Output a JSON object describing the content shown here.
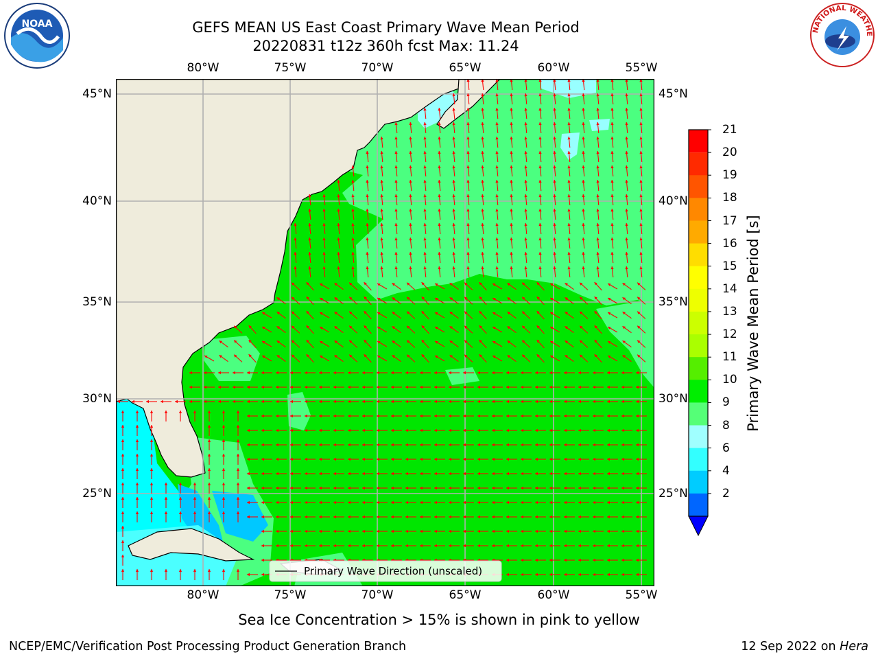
{
  "title": {
    "line1": "GEFS MEAN US East Coast Primary Wave Mean Period",
    "line2": "20220831 t12z 360h fcst   Max: 11.24"
  },
  "map": {
    "lon_labels": [
      "80°W",
      "75°W",
      "70°W",
      "65°W",
      "60°W",
      "55°W"
    ],
    "lat_labels": [
      "45°N",
      "40°N",
      "35°N",
      "30°N",
      "25°N"
    ],
    "legend_label": "Primary Wave Direction (unscaled)",
    "arrow_color": "#ff0000",
    "land_color": "#efecdc",
    "field_colors": {
      "lt9_light": "#98ffff",
      "9_10": "#4bff80",
      "10_11": "#00e600",
      "8_9": "#4bffff",
      "6_8": "#00ffff",
      "4_6": "#00c8ff"
    }
  },
  "colorbar": {
    "title": "Primary Wave Mean Period [s]",
    "levels": [
      "2",
      "4",
      "6",
      "8",
      "9",
      "10",
      "11",
      "12",
      "13",
      "14",
      "15",
      "16",
      "17",
      "18",
      "19",
      "20",
      "21"
    ],
    "colors": [
      "#0066ff",
      "#00ccff",
      "#33ffff",
      "#a0ffff",
      "#55ff77",
      "#00ee00",
      "#55ee00",
      "#aaff00",
      "#ccff00",
      "#eeff00",
      "#ffff00",
      "#ffdd00",
      "#ffaa00",
      "#ff8800",
      "#ff5500",
      "#ff2a00"
    ],
    "under_color": "#0000ff",
    "top_color": "#ff0000"
  },
  "note": "Sea Ice Concentration > 15% is shown in pink to yellow",
  "footer": {
    "left": "NCEP/EMC/Verification Post Processing Product Generation Branch",
    "right_date": "12 Sep 2022 on",
    "right_host": "Hera"
  },
  "logos": {
    "noaa_text": "NOAA",
    "nws_text": "NATIONAL WEATHER SERVICE"
  }
}
